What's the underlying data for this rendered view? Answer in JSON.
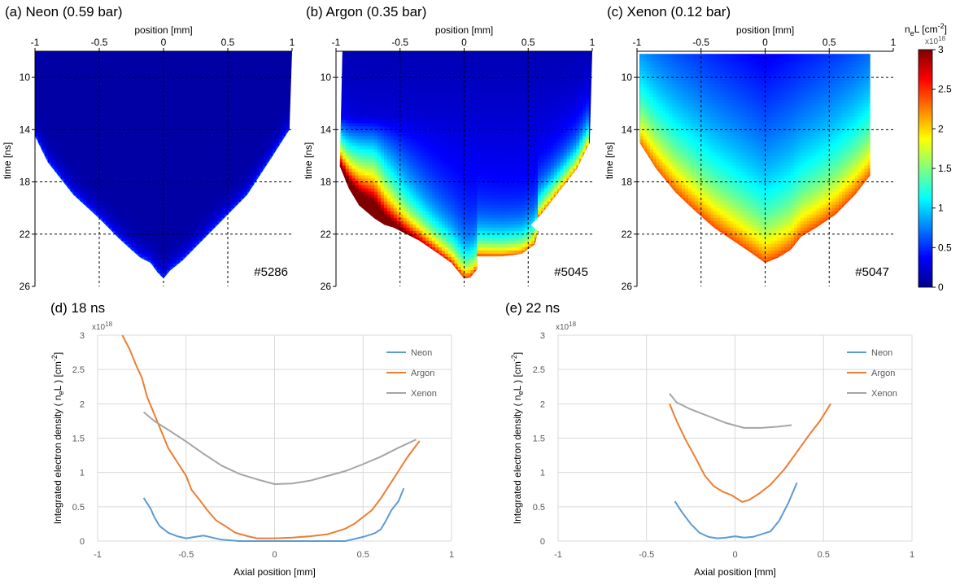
{
  "colorbar": {
    "label_main": "n",
    "label_sub": "e",
    "label_rest": "L [cm",
    "label_exp": "-2",
    "label_close": "]",
    "multiplier_base": "x10",
    "multiplier_exp": "18",
    "ticks": [
      "3",
      "2.5",
      "2",
      "1.5",
      "1",
      "0.5",
      "0"
    ],
    "range": [
      0,
      3
    ]
  },
  "chart_data": [
    {
      "type": "heatmap",
      "panel": "a",
      "title": "(a) Neon (0.59 bar)",
      "xlabel": "position [mm]",
      "ylabel": "time [ns]",
      "x_ticks": [
        "-1",
        "-0.5",
        "0",
        "0.5",
        "1"
      ],
      "y_ticks": [
        "10",
        "14",
        "18",
        "22",
        "26"
      ],
      "xlim": [
        -1,
        1
      ],
      "ylim": [
        8,
        26
      ],
      "shot": "#5286",
      "boundary": [
        [
          -1,
          8
        ],
        [
          -1,
          14.5
        ],
        [
          -0.9,
          16.5
        ],
        [
          -0.7,
          19
        ],
        [
          -0.5,
          20.8
        ],
        [
          -0.35,
          22.3
        ],
        [
          -0.25,
          23.2
        ],
        [
          -0.18,
          23.8
        ],
        [
          -0.1,
          24.2
        ],
        [
          -0.05,
          24.9
        ],
        [
          0,
          25.4
        ],
        [
          0.05,
          24.8
        ],
        [
          0.15,
          24.0
        ],
        [
          0.3,
          22.5
        ],
        [
          0.45,
          21.0
        ],
        [
          0.65,
          19.0
        ],
        [
          0.85,
          16.0
        ],
        [
          0.98,
          14.0
        ],
        [
          1,
          8
        ]
      ],
      "value_model": "near zero everywhere, rising to about 0.6 at the lower boundary"
    },
    {
      "type": "heatmap",
      "panel": "b",
      "title": "(b) Argon (0.35 bar)",
      "xlabel": "position [mm]",
      "ylabel": "time [ns]",
      "x_ticks": [
        "-1",
        "-0.5",
        "0",
        "0.5",
        "1"
      ],
      "y_ticks": [
        "10",
        "14",
        "18",
        "22",
        "26"
      ],
      "xlim": [
        -1,
        1
      ],
      "ylim": [
        8,
        26
      ],
      "shot": "#5045",
      "boundary": [
        [
          -0.95,
          8
        ],
        [
          -0.97,
          16.8
        ],
        [
          -0.9,
          18.5
        ],
        [
          -0.82,
          19.8
        ],
        [
          -0.7,
          20.8
        ],
        [
          -0.62,
          21.3
        ],
        [
          -0.55,
          21.5
        ],
        [
          -0.45,
          22.0
        ],
        [
          -0.35,
          22.5
        ],
        [
          -0.2,
          23.5
        ],
        [
          -0.1,
          24.2
        ],
        [
          -0.05,
          24.8
        ],
        [
          0,
          25.4
        ],
        [
          0.05,
          25.3
        ],
        [
          0.1,
          24.7
        ],
        [
          0.1,
          23.7
        ],
        [
          0.3,
          23.7
        ],
        [
          0.45,
          23.5
        ],
        [
          0.55,
          22.8
        ],
        [
          0.58,
          21.8
        ],
        [
          0.52,
          21.3
        ],
        [
          0.6,
          20.5
        ],
        [
          0.72,
          19.0
        ],
        [
          0.88,
          17.0
        ],
        [
          0.98,
          15.0
        ],
        [
          1,
          8
        ]
      ],
      "value_model": "low at centre-top, rising strongly toward the lower-left edge (about 3) and the lower boundary (about 2)"
    },
    {
      "type": "heatmap",
      "panel": "c",
      "title": "(c) Xenon (0.12 bar)",
      "xlabel": "position [mm]",
      "ylabel": "time [ns]",
      "x_ticks": [
        "-1",
        "-0.5",
        "0",
        "0.5",
        "1"
      ],
      "y_ticks": [
        "10",
        "14",
        "18",
        "22",
        "26"
      ],
      "xlim": [
        -1,
        1
      ],
      "ylim": [
        8,
        26
      ],
      "shot": "#5047",
      "boundary": [
        [
          -0.98,
          8.2
        ],
        [
          -0.98,
          15.0
        ],
        [
          -0.85,
          17.0
        ],
        [
          -0.7,
          18.8
        ],
        [
          -0.55,
          20.2
        ],
        [
          -0.4,
          21.5
        ],
        [
          -0.25,
          22.5
        ],
        [
          -0.1,
          23.5
        ],
        [
          0,
          24.2
        ],
        [
          0.1,
          23.8
        ],
        [
          0.2,
          23.2
        ],
        [
          0.28,
          22.2
        ],
        [
          0.4,
          21.5
        ],
        [
          0.55,
          20.5
        ],
        [
          0.7,
          19.0
        ],
        [
          0.82,
          17.5
        ],
        [
          0.82,
          8.2
        ]
      ],
      "value_model": "about 0.3 at the top centre, rising to about 2 at the lower boundary"
    },
    {
      "type": "line",
      "panel": "d",
      "title": "(d) 18 ns",
      "xlabel": "Axial position [mm]",
      "ylabel_parts": [
        "Integrated electron density ( n",
        "e",
        "L ) [cm",
        "-2",
        "]"
      ],
      "multiplier_base": "x10",
      "multiplier_exp": "18",
      "xlim": [
        -1,
        1
      ],
      "ylim": [
        0,
        3
      ],
      "x_ticks": [
        "-1",
        "-0.5",
        "0",
        "0.5",
        "1"
      ],
      "y_ticks": [
        "0",
        "0.5",
        "1",
        "1.5",
        "2",
        "2.5",
        "3"
      ],
      "series": [
        {
          "name": "Neon",
          "color": "#5b9bd5",
          "points": [
            [
              -0.74,
              0.63
            ],
            [
              -0.72,
              0.55
            ],
            [
              -0.7,
              0.47
            ],
            [
              -0.68,
              0.35
            ],
            [
              -0.65,
              0.22
            ],
            [
              -0.6,
              0.12
            ],
            [
              -0.55,
              0.07
            ],
            [
              -0.5,
              0.04
            ],
            [
              -0.45,
              0.06
            ],
            [
              -0.4,
              0.08
            ],
            [
              -0.35,
              0.05
            ],
            [
              -0.3,
              0.02
            ],
            [
              -0.2,
              0.0
            ],
            [
              0,
              0.0
            ],
            [
              0.2,
              0.0
            ],
            [
              0.4,
              0.0
            ],
            [
              0.45,
              0.03
            ],
            [
              0.5,
              0.06
            ],
            [
              0.55,
              0.1
            ],
            [
              0.57,
              0.12
            ],
            [
              0.6,
              0.17
            ],
            [
              0.63,
              0.3
            ],
            [
              0.66,
              0.45
            ],
            [
              0.7,
              0.58
            ],
            [
              0.73,
              0.77
            ]
          ]
        },
        {
          "name": "Argon",
          "color": "#ed7d31",
          "points": [
            [
              -0.86,
              3.0
            ],
            [
              -0.82,
              2.8
            ],
            [
              -0.78,
              2.55
            ],
            [
              -0.75,
              2.38
            ],
            [
              -0.72,
              2.1
            ],
            [
              -0.68,
              1.85
            ],
            [
              -0.64,
              1.6
            ],
            [
              -0.6,
              1.35
            ],
            [
              -0.55,
              1.15
            ],
            [
              -0.5,
              0.95
            ],
            [
              -0.47,
              0.75
            ],
            [
              -0.43,
              0.62
            ],
            [
              -0.38,
              0.45
            ],
            [
              -0.33,
              0.3
            ],
            [
              -0.28,
              0.22
            ],
            [
              -0.22,
              0.12
            ],
            [
              -0.15,
              0.07
            ],
            [
              -0.1,
              0.04
            ],
            [
              0,
              0.04
            ],
            [
              0.1,
              0.05
            ],
            [
              0.2,
              0.07
            ],
            [
              0.3,
              0.1
            ],
            [
              0.4,
              0.18
            ],
            [
              0.45,
              0.25
            ],
            [
              0.5,
              0.35
            ],
            [
              0.55,
              0.45
            ],
            [
              0.6,
              0.62
            ],
            [
              0.65,
              0.82
            ],
            [
              0.7,
              1.02
            ],
            [
              0.75,
              1.22
            ],
            [
              0.82,
              1.46
            ]
          ]
        },
        {
          "name": "Xenon",
          "color": "#a5a5a5",
          "points": [
            [
              -0.74,
              1.88
            ],
            [
              -0.68,
              1.75
            ],
            [
              -0.6,
              1.62
            ],
            [
              -0.5,
              1.45
            ],
            [
              -0.4,
              1.27
            ],
            [
              -0.3,
              1.1
            ],
            [
              -0.2,
              0.98
            ],
            [
              -0.1,
              0.9
            ],
            [
              0,
              0.83
            ],
            [
              0.1,
              0.84
            ],
            [
              0.2,
              0.88
            ],
            [
              0.3,
              0.95
            ],
            [
              0.4,
              1.02
            ],
            [
              0.5,
              1.12
            ],
            [
              0.6,
              1.23
            ],
            [
              0.7,
              1.36
            ],
            [
              0.8,
              1.48
            ]
          ]
        }
      ]
    },
    {
      "type": "line",
      "panel": "e",
      "title": "(e) 22 ns",
      "xlabel": "Axial position [mm]",
      "ylabel_parts": [
        "Integrated electron density ( n",
        "e",
        "L ) [cm",
        "-2",
        "]"
      ],
      "multiplier_base": "x10",
      "multiplier_exp": "18",
      "xlim": [
        -1,
        1
      ],
      "ylim": [
        0,
        3
      ],
      "x_ticks": [
        "-1",
        "-0.5",
        "0",
        "0.5",
        "1"
      ],
      "y_ticks": [
        "0",
        "0.5",
        "1",
        "1.5",
        "2",
        "2.5",
        "3"
      ],
      "series": [
        {
          "name": "Neon",
          "color": "#5b9bd5",
          "points": [
            [
              -0.34,
              0.58
            ],
            [
              -0.3,
              0.42
            ],
            [
              -0.25,
              0.25
            ],
            [
              -0.2,
              0.12
            ],
            [
              -0.15,
              0.06
            ],
            [
              -0.1,
              0.04
            ],
            [
              -0.05,
              0.05
            ],
            [
              0,
              0.07
            ],
            [
              0.05,
              0.05
            ],
            [
              0.1,
              0.06
            ],
            [
              0.15,
              0.1
            ],
            [
              0.2,
              0.14
            ],
            [
              0.25,
              0.3
            ],
            [
              0.3,
              0.55
            ],
            [
              0.35,
              0.85
            ]
          ]
        },
        {
          "name": "Argon",
          "color": "#ed7d31",
          "points": [
            [
              -0.37,
              2.0
            ],
            [
              -0.33,
              1.75
            ],
            [
              -0.28,
              1.48
            ],
            [
              -0.22,
              1.2
            ],
            [
              -0.17,
              0.95
            ],
            [
              -0.12,
              0.8
            ],
            [
              -0.07,
              0.72
            ],
            [
              -0.02,
              0.67
            ],
            [
              0.04,
              0.57
            ],
            [
              0.08,
              0.6
            ],
            [
              0.14,
              0.7
            ],
            [
              0.2,
              0.82
            ],
            [
              0.28,
              1.05
            ],
            [
              0.35,
              1.3
            ],
            [
              0.42,
              1.55
            ],
            [
              0.48,
              1.75
            ],
            [
              0.54,
              2.0
            ]
          ]
        },
        {
          "name": "Xenon",
          "color": "#a5a5a5",
          "points": [
            [
              -0.37,
              2.15
            ],
            [
              -0.33,
              2.02
            ],
            [
              -0.25,
              1.92
            ],
            [
              -0.15,
              1.82
            ],
            [
              -0.05,
              1.72
            ],
            [
              0.05,
              1.65
            ],
            [
              0.15,
              1.65
            ],
            [
              0.25,
              1.67
            ],
            [
              0.32,
              1.69
            ]
          ]
        }
      ]
    }
  ]
}
